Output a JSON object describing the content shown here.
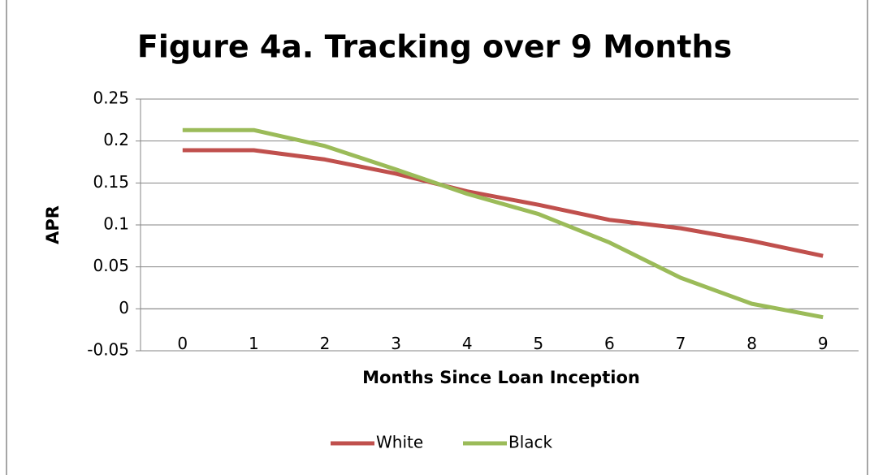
{
  "chart_data": {
    "type": "line",
    "title": "Figure 4a.  Tracking over 9 Months",
    "x_label": "Months Since Loan Inception",
    "y_label": "APR",
    "categories": [
      "0",
      "1",
      "2",
      "3",
      "4",
      "5",
      "6",
      "7",
      "8",
      "9"
    ],
    "series": [
      {
        "name": "White",
        "color": "#c0504d",
        "values": [
          0.189,
          0.189,
          0.178,
          0.161,
          0.14,
          0.124,
          0.106,
          0.096,
          0.081,
          0.063
        ]
      },
      {
        "name": "Black",
        "color": "#9bbb59",
        "values": [
          0.213,
          0.213,
          0.194,
          0.166,
          0.137,
          0.113,
          0.079,
          0.037,
          0.006,
          -0.01
        ]
      }
    ],
    "ylim": [
      -0.05,
      0.25
    ],
    "yticks": [
      -0.05,
      0,
      0.05,
      0.1,
      0.15,
      0.2,
      0.25
    ],
    "grid": true,
    "legend": "bottom"
  }
}
